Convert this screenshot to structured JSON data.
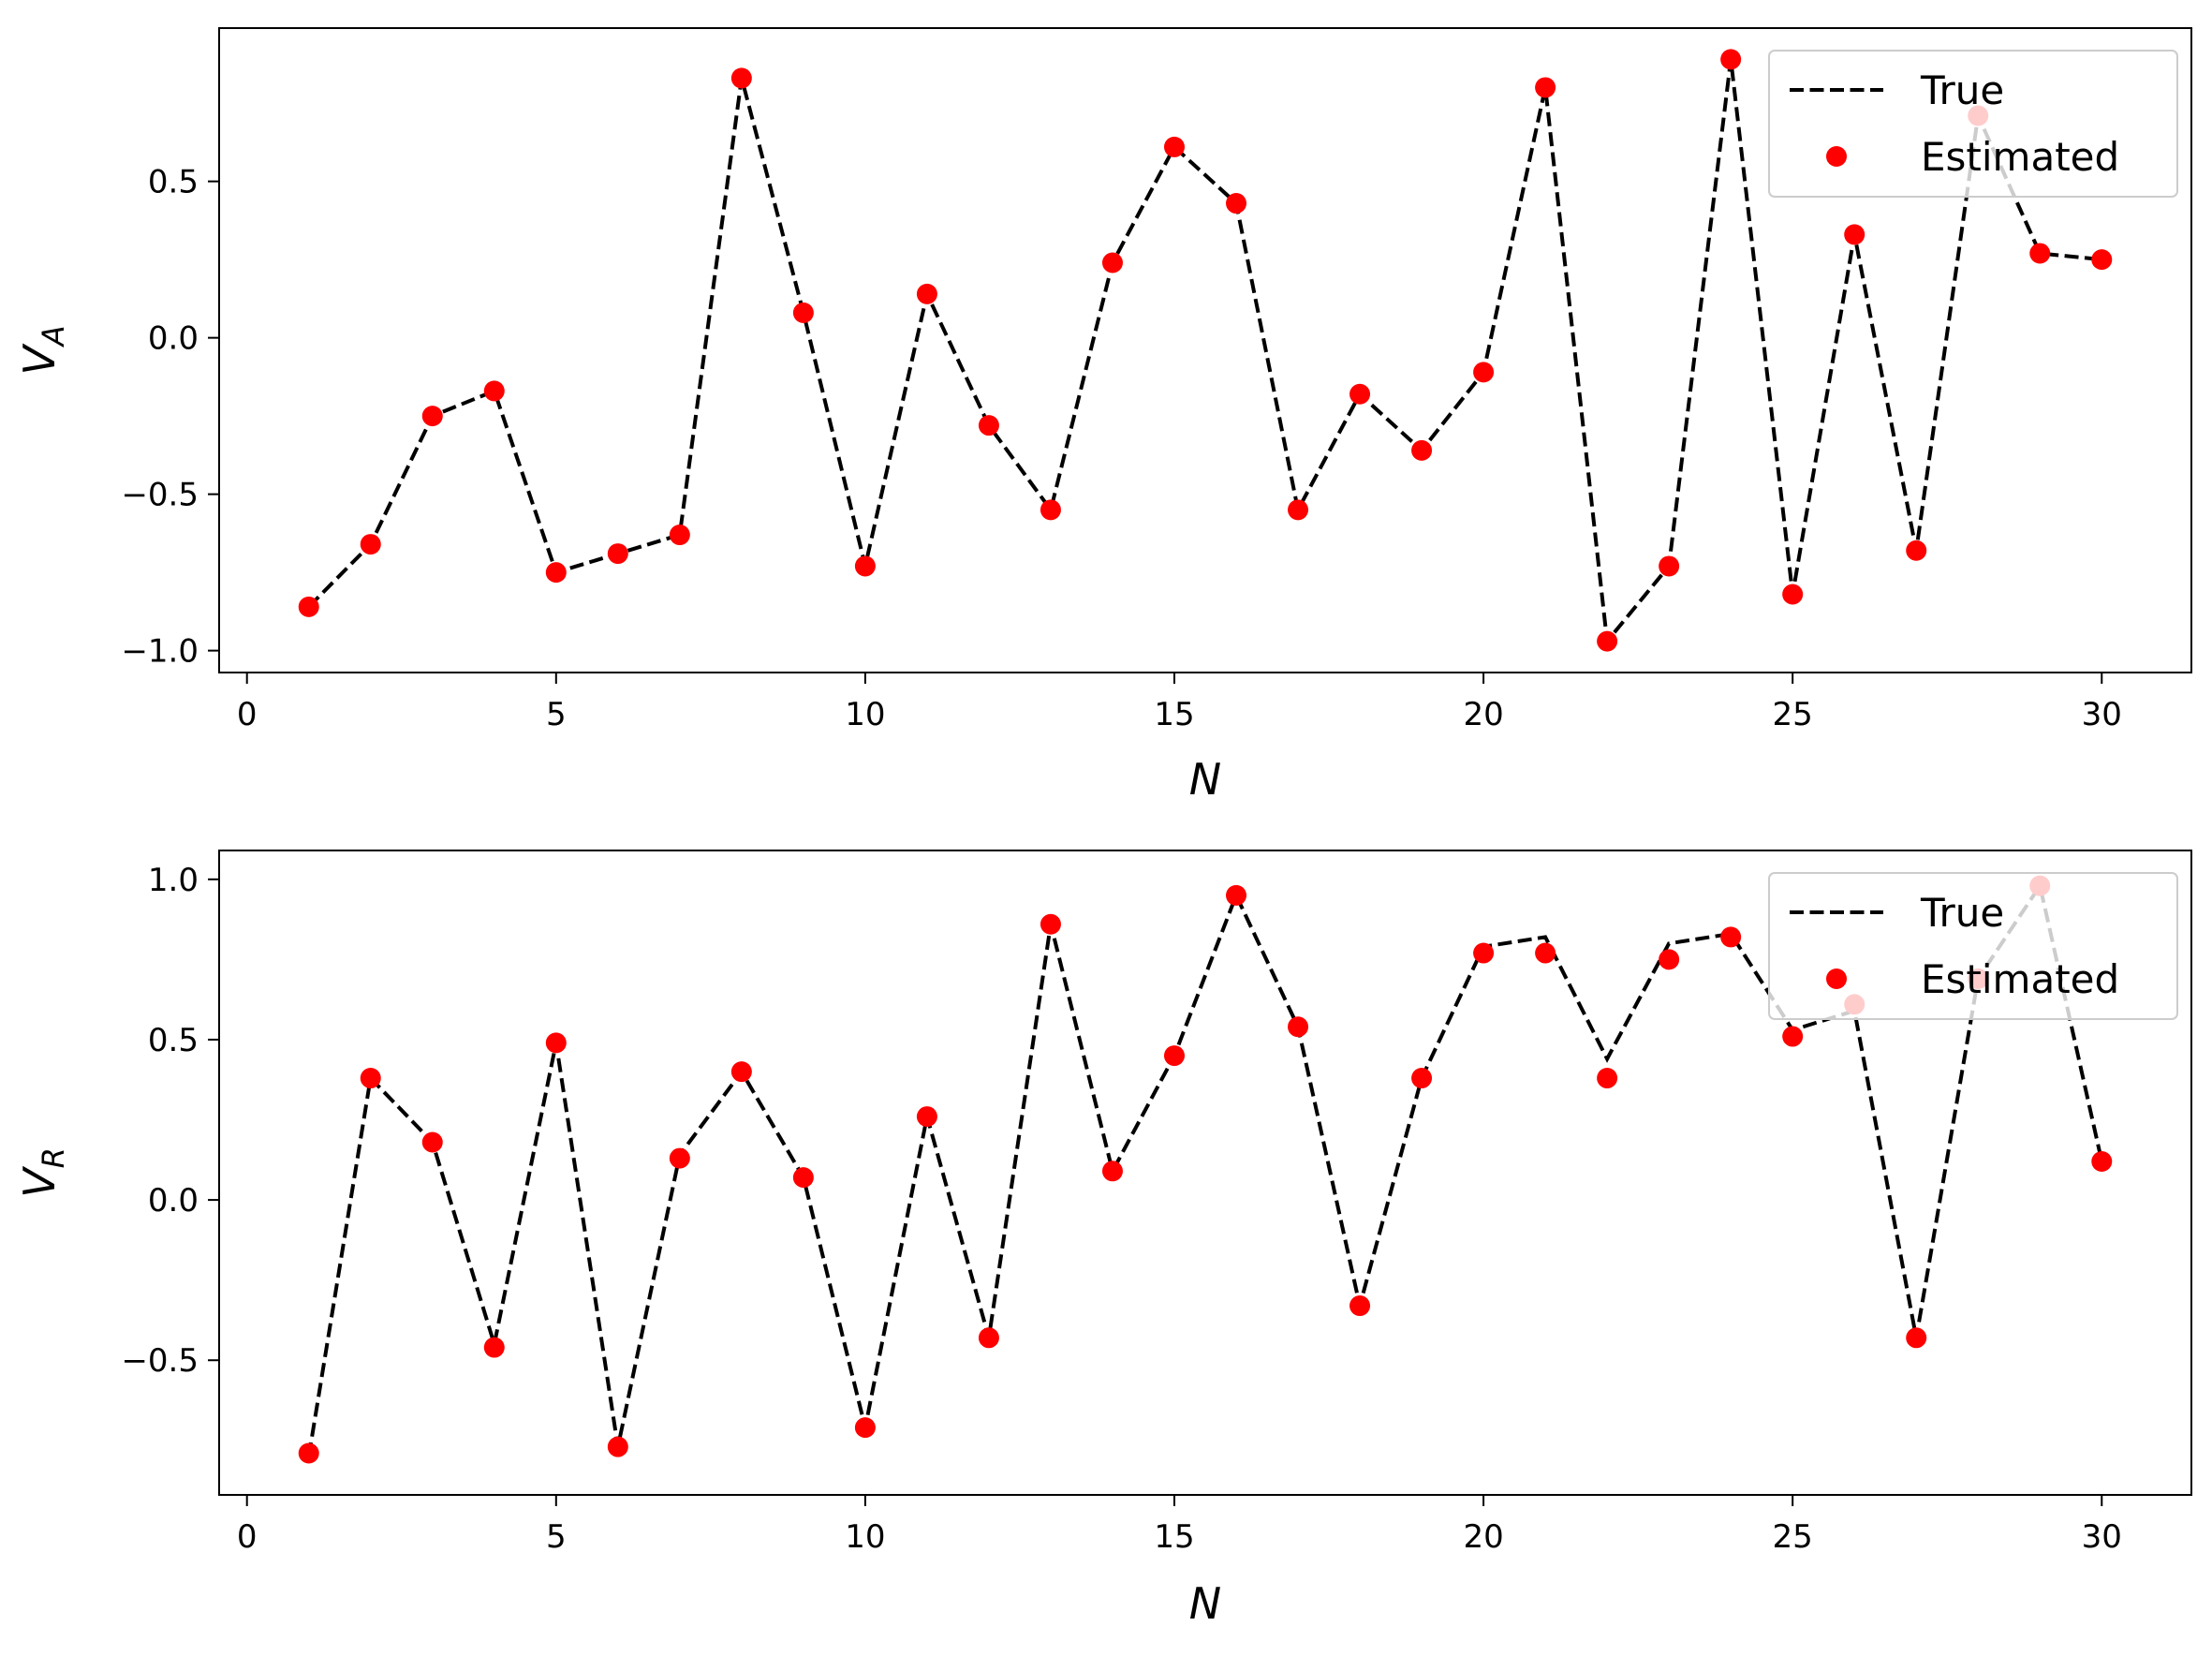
{
  "chart_data": [
    {
      "type": "line",
      "xlabel": "N",
      "ylabel": "V",
      "ylabel_subscript": "A",
      "xlim": [
        -0.45,
        31.45
      ],
      "ylim": [
        -1.07,
        0.99
      ],
      "x_ticks": [
        0,
        5,
        10,
        15,
        20,
        25,
        30
      ],
      "x_tick_labels": [
        "0",
        "5",
        "10",
        "15",
        "20",
        "25",
        "30"
      ],
      "y_ticks": [
        -1.0,
        -0.5,
        0.0,
        0.5
      ],
      "y_tick_labels": [
        "−1.0",
        "−0.5",
        "0.0",
        "0.5"
      ],
      "grid": false,
      "legend_position": "top-right",
      "x": [
        1,
        2,
        3,
        4,
        5,
        6,
        7,
        8,
        9,
        10,
        11,
        12,
        13,
        14,
        15,
        16,
        17,
        18,
        19,
        20,
        21,
        22,
        23,
        24,
        25,
        26,
        27,
        28,
        29,
        30
      ],
      "series": [
        {
          "name": "True",
          "style": "dashed-line",
          "color": "#000000",
          "values": [
            -0.86,
            -0.66,
            -0.25,
            -0.17,
            -0.75,
            -0.69,
            -0.63,
            0.83,
            0.08,
            -0.73,
            0.14,
            -0.28,
            -0.55,
            0.24,
            0.61,
            0.43,
            -0.55,
            -0.18,
            -0.36,
            -0.11,
            0.8,
            -0.97,
            -0.73,
            0.89,
            -0.82,
            0.33,
            -0.68,
            0.71,
            0.27,
            0.25
          ]
        },
        {
          "name": "Estimated",
          "style": "marker",
          "color": "#ff0000",
          "values": [
            -0.86,
            -0.66,
            -0.25,
            -0.17,
            -0.75,
            -0.69,
            -0.63,
            0.83,
            0.08,
            -0.73,
            0.14,
            -0.28,
            -0.55,
            0.24,
            0.61,
            0.43,
            -0.55,
            -0.18,
            -0.36,
            -0.11,
            0.8,
            -0.97,
            -0.73,
            0.89,
            -0.82,
            0.33,
            -0.68,
            0.71,
            0.27,
            0.25
          ]
        }
      ]
    },
    {
      "type": "line",
      "xlabel": "N",
      "ylabel": "V",
      "ylabel_subscript": "R",
      "xlim": [
        -0.45,
        31.45
      ],
      "ylim": [
        -0.92,
        1.09
      ],
      "x_ticks": [
        0,
        5,
        10,
        15,
        20,
        25,
        30
      ],
      "x_tick_labels": [
        "0",
        "5",
        "10",
        "15",
        "20",
        "25",
        "30"
      ],
      "y_ticks": [
        -0.5,
        0.0,
        0.5,
        1.0
      ],
      "y_tick_labels": [
        "−0.5",
        "0.0",
        "0.5",
        "1.0"
      ],
      "grid": false,
      "legend_position": "top-right",
      "x": [
        1,
        2,
        3,
        4,
        5,
        6,
        7,
        8,
        9,
        10,
        11,
        12,
        13,
        14,
        15,
        16,
        17,
        18,
        19,
        20,
        21,
        22,
        23,
        24,
        25,
        26,
        27,
        28,
        29,
        30
      ],
      "series": [
        {
          "name": "True",
          "style": "dashed-line",
          "color": "#000000",
          "values": [
            -0.8,
            0.38,
            0.18,
            -0.45,
            0.49,
            -0.77,
            0.14,
            0.4,
            0.07,
            -0.71,
            0.26,
            -0.43,
            0.86,
            0.09,
            0.45,
            0.95,
            0.54,
            -0.33,
            0.38,
            0.79,
            0.82,
            0.44,
            0.8,
            0.83,
            0.53,
            0.59,
            -0.43,
            0.69,
            0.98,
            0.12
          ]
        },
        {
          "name": "Estimated",
          "style": "marker",
          "color": "#ff0000",
          "values": [
            -0.79,
            0.38,
            0.18,
            -0.46,
            0.49,
            -0.77,
            0.13,
            0.4,
            0.07,
            -0.71,
            0.26,
            -0.43,
            0.86,
            0.09,
            0.45,
            0.95,
            0.54,
            -0.33,
            0.38,
            0.77,
            0.77,
            0.38,
            0.75,
            0.82,
            0.51,
            0.61,
            -0.43,
            0.69,
            0.98,
            0.12
          ]
        }
      ]
    }
  ]
}
